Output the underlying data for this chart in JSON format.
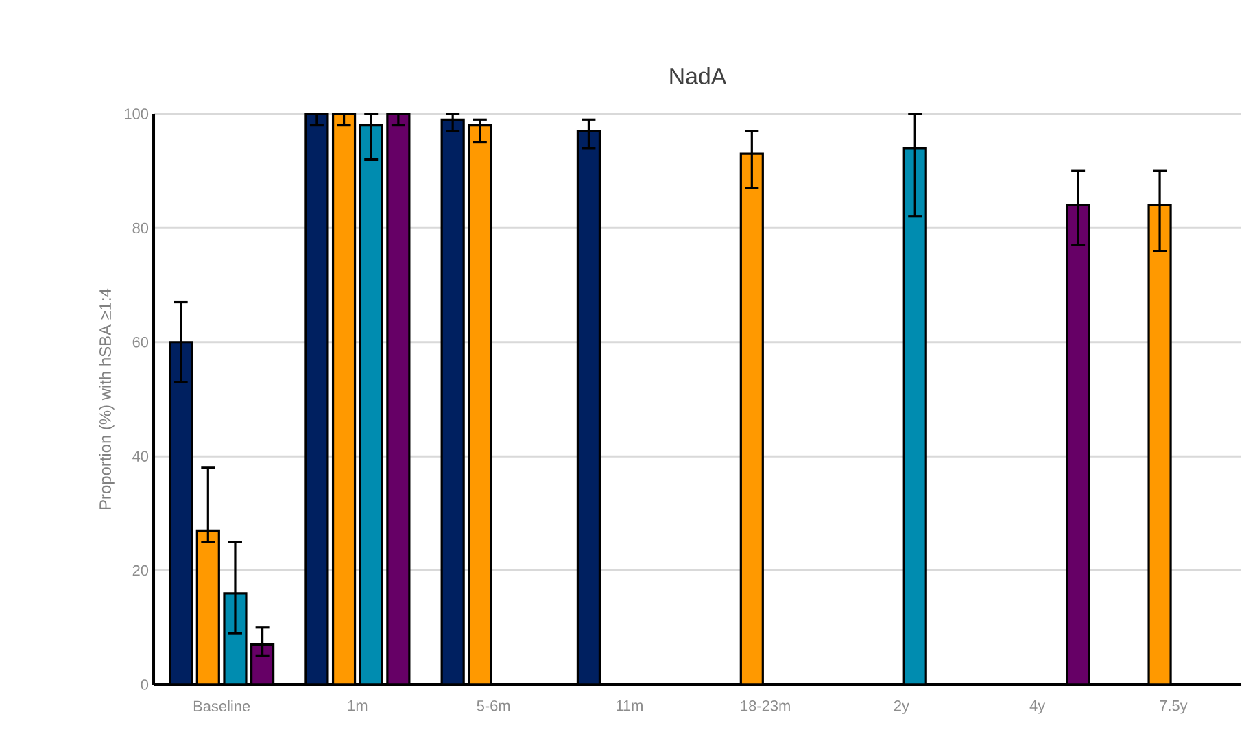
{
  "chart_data": {
    "type": "bar",
    "title": "NadA",
    "ylabel": "Proportion (%) with hSBA ≥1:4",
    "categories": [
      "Baseline",
      "1m",
      "5-6m",
      "11m",
      "18-23m",
      "2y",
      "4y",
      "7.5y"
    ],
    "series": [
      {
        "color": "#002060",
        "values": [
          60,
          100,
          99,
          97,
          null,
          null,
          null,
          null
        ],
        "errors": [
          [
            53,
            67
          ],
          [
            98,
            100
          ],
          [
            97,
            100
          ],
          [
            94,
            99
          ],
          null,
          null,
          null,
          null
        ]
      },
      {
        "color": "#ff9900",
        "values": [
          27,
          100,
          98,
          null,
          93,
          null,
          null,
          84
        ],
        "errors": [
          [
            25,
            38
          ],
          [
            98,
            100
          ],
          [
            95,
            99
          ],
          null,
          [
            87,
            97
          ],
          null,
          null,
          [
            76,
            90
          ]
        ]
      },
      {
        "color": "#008cb0",
        "values": [
          16,
          98,
          null,
          null,
          null,
          94,
          null,
          null
        ],
        "errors": [
          [
            9,
            25
          ],
          [
            92,
            100
          ],
          null,
          null,
          null,
          [
            82,
            100
          ],
          null,
          null
        ]
      },
      {
        "color": "#660066",
        "values": [
          7,
          100,
          null,
          null,
          null,
          null,
          84,
          null
        ],
        "errors": [
          [
            5,
            10
          ],
          [
            98,
            100
          ],
          null,
          null,
          null,
          null,
          [
            77,
            90
          ],
          null
        ]
      }
    ],
    "ylim": [
      0,
      100
    ],
    "yticks": [
      0,
      20,
      40,
      60,
      80,
      100
    ],
    "grid": "y"
  }
}
